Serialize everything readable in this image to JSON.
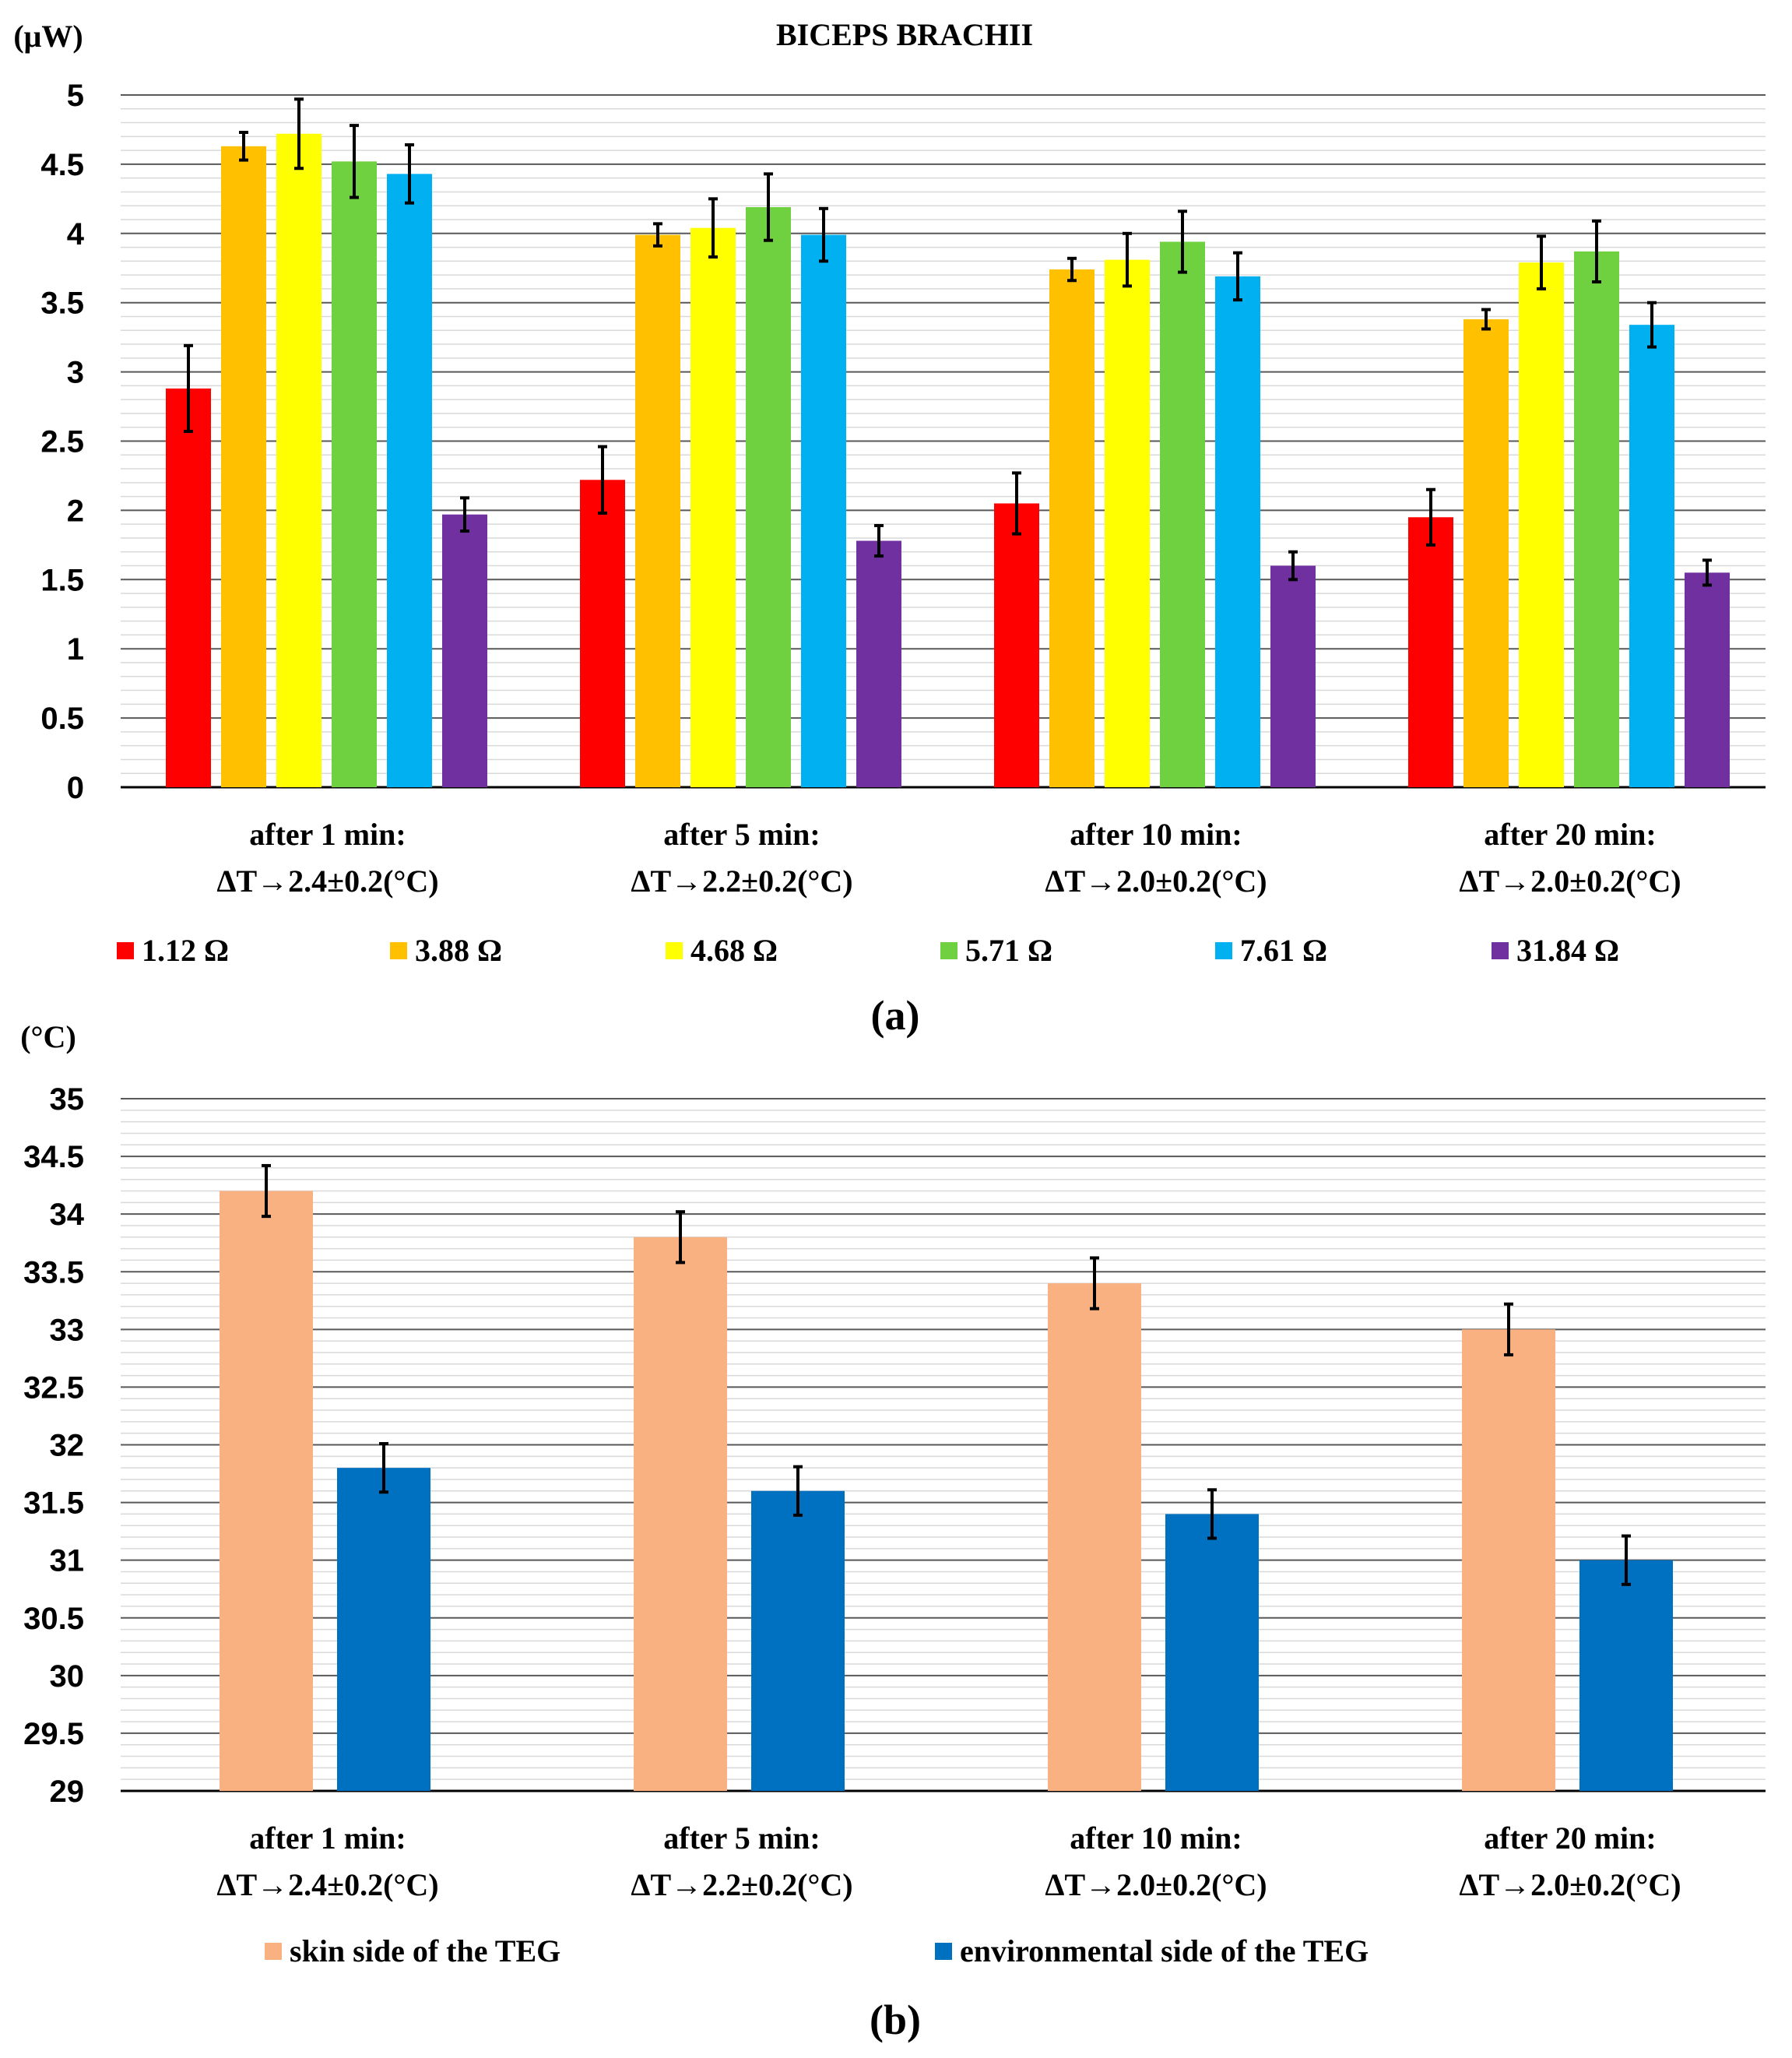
{
  "figure": {
    "title": "BICEPS BRACHII",
    "panel_a_label": "(a)",
    "panel_b_label": "(b)"
  },
  "chart_data": [
    {
      "type": "bar",
      "panel": "(a)",
      "title": "BICEPS BRACHII",
      "ylabel": "(μW)",
      "xlabel": "",
      "ylim": [
        0,
        5
      ],
      "major_ticks": [
        "0",
        "0.5",
        "1",
        "1.5",
        "2",
        "2.5",
        "3",
        "3.5",
        "4",
        "4.5",
        "5"
      ],
      "minor_step": 0.1,
      "grid": true,
      "legend_position": "bottom",
      "categories": [
        [
          "after 1 min:",
          "ΔT→2.4±0.2(°C)"
        ],
        [
          "after 5 min:",
          "ΔT→2.2±0.2(°C)"
        ],
        [
          "after 10 min:",
          "ΔT→2.0±0.2(°C)"
        ],
        [
          "after 20 min:",
          "ΔT→2.0±0.2(°C)"
        ]
      ],
      "series": [
        {
          "name": "1.12 Ω",
          "color": "#ff0000",
          "values": [
            2.88,
            2.22,
            2.05,
            1.95
          ],
          "errors": [
            0.31,
            0.24,
            0.22,
            0.2
          ]
        },
        {
          "name": "3.88 Ω",
          "color": "#ffc000",
          "values": [
            4.63,
            3.99,
            3.74,
            3.38
          ],
          "errors": [
            0.1,
            0.08,
            0.08,
            0.07
          ]
        },
        {
          "name": "4.68 Ω",
          "color": "#ffff00",
          "values": [
            4.72,
            4.04,
            3.81,
            3.79
          ],
          "errors": [
            0.25,
            0.21,
            0.19,
            0.19
          ]
        },
        {
          "name": "5.71 Ω",
          "color": "#70d140",
          "values": [
            4.52,
            4.19,
            3.94,
            3.87
          ],
          "errors": [
            0.26,
            0.24,
            0.22,
            0.22
          ]
        },
        {
          "name": "7.61 Ω",
          "color": "#00b0f0",
          "values": [
            4.43,
            3.99,
            3.69,
            3.34
          ],
          "errors": [
            0.21,
            0.19,
            0.17,
            0.16
          ]
        },
        {
          "name": "31.84 Ω",
          "color": "#7030a0",
          "values": [
            1.97,
            1.78,
            1.6,
            1.55
          ],
          "errors": [
            0.12,
            0.11,
            0.1,
            0.09
          ]
        }
      ]
    },
    {
      "type": "bar",
      "panel": "(b)",
      "title": "",
      "ylabel": "(°C)",
      "xlabel": "",
      "ylim": [
        29,
        35
      ],
      "major_ticks": [
        "29",
        "29.5",
        "30",
        "30.5",
        "31",
        "31.5",
        "32",
        "32.5",
        "33",
        "33.5",
        "34",
        "34.5",
        "35"
      ],
      "minor_step": 0.1,
      "grid": true,
      "legend_position": "bottom",
      "categories": [
        [
          "after 1 min:",
          "ΔT→2.4±0.2(°C)"
        ],
        [
          "after 5 min:",
          "ΔT→2.2±0.2(°C)"
        ],
        [
          "after 10 min:",
          "ΔT→2.0±0.2(°C)"
        ],
        [
          "after 20 min:",
          "ΔT→2.0±0.2(°C)"
        ]
      ],
      "series": [
        {
          "name": "skin side of the TEG",
          "color": "#f9b182",
          "values": [
            34.2,
            33.8,
            33.4,
            33.0
          ],
          "errors": [
            0.22,
            0.22,
            0.22,
            0.22
          ]
        },
        {
          "name": "environmental side of the TEG",
          "color": "#0070c0",
          "values": [
            31.8,
            31.6,
            31.4,
            31.0
          ],
          "errors": [
            0.21,
            0.21,
            0.21,
            0.21
          ]
        }
      ]
    }
  ]
}
